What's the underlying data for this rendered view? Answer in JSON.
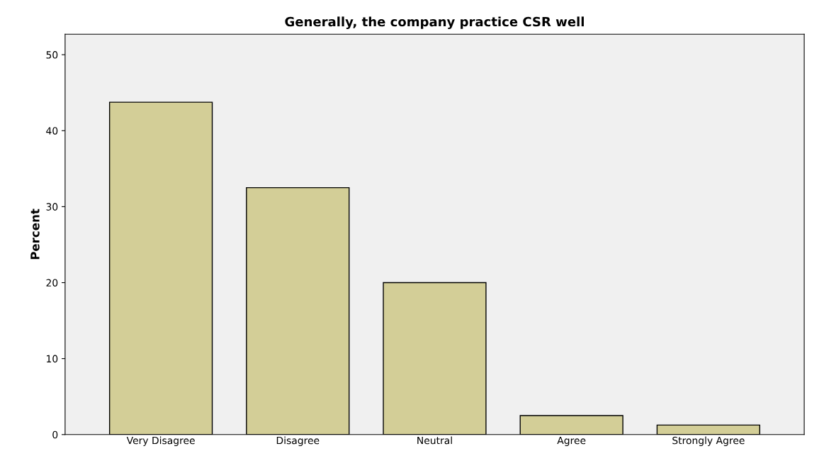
{
  "chart_data": {
    "type": "bar",
    "title": "Generally, the company practice CSR well",
    "ylabel": "Percent",
    "categories": [
      "Very Disagree",
      "Disagree",
      "Neutral",
      "Agree",
      "Strongly Agree"
    ],
    "values": [
      43.75,
      32.5,
      20,
      2.5,
      1.25
    ],
    "color": "#d3ce97",
    "ylim": [
      0,
      52.7
    ],
    "yticks": [
      0,
      10,
      20,
      30,
      40,
      50
    ],
    "grid": false
  }
}
